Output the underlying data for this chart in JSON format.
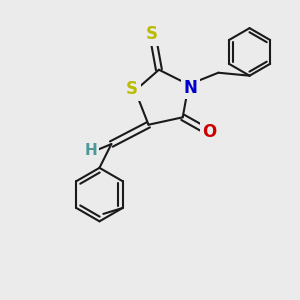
{
  "bg_color": "#ebebeb",
  "bond_color": "#1a1a1a",
  "S_color": "#bbbb00",
  "N_color": "#0000cc",
  "O_color": "#cc0000",
  "H_color": "#4d9999",
  "ring_S_label": "S",
  "ring_N_label": "N",
  "exo_S_label": "S",
  "O_label": "O",
  "H_label": "H",
  "font_size_atom": 11,
  "line_width": 1.5
}
